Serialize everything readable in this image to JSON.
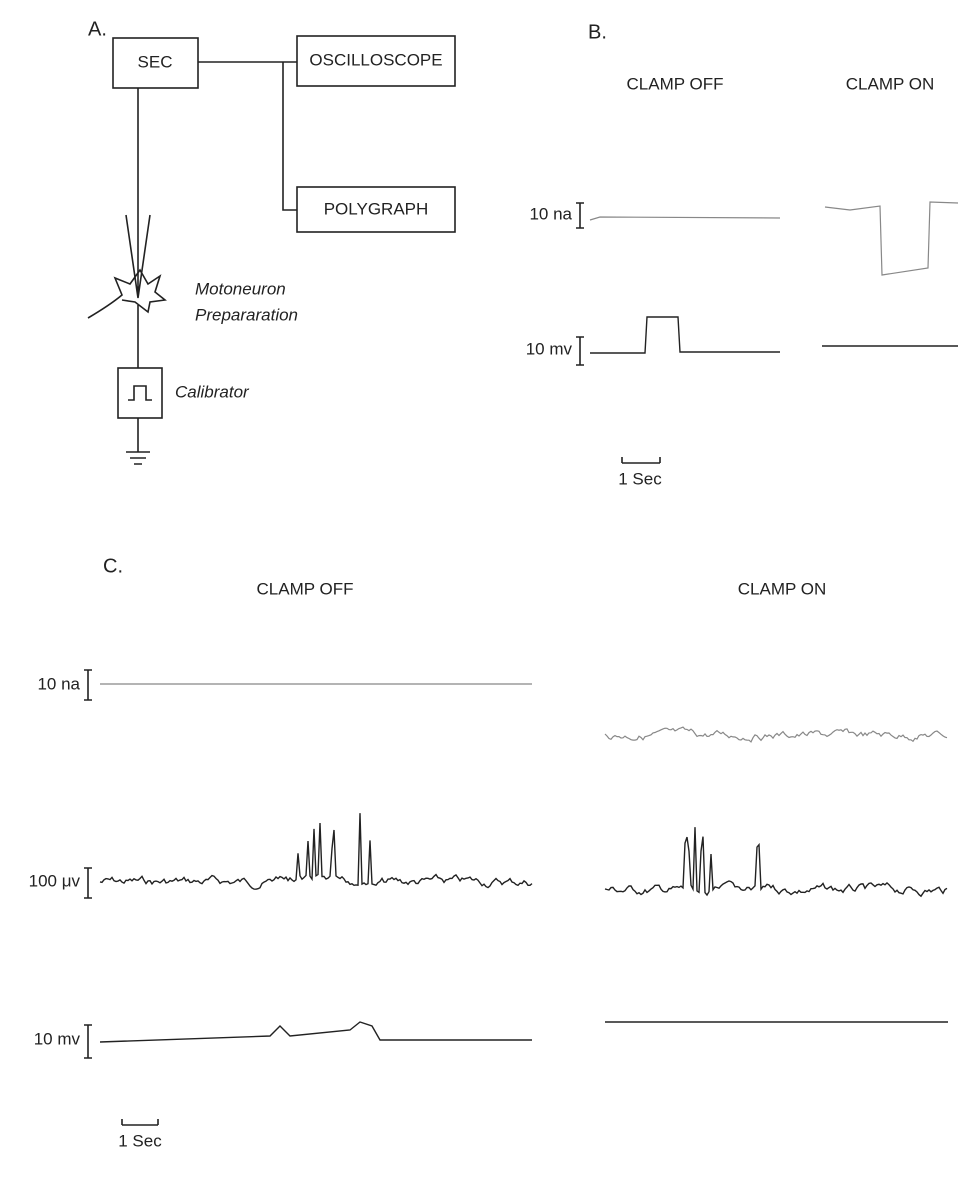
{
  "panel_a": {
    "label": "A.",
    "sec": "SEC",
    "oscilloscope": "OSCILLOSCOPE",
    "polygraph": "POLYGRAPH",
    "preparation": [
      "Motoneuron",
      "Prepararation"
    ],
    "calibrator": "Calibrator"
  },
  "panel_b": {
    "label": "B.",
    "columns": [
      "CLAMP OFF",
      "CLAMP ON"
    ],
    "scales": [
      "10 na",
      "10 mv"
    ],
    "time_scale": "1 Sec"
  },
  "panel_c": {
    "label": "C.",
    "columns": [
      "CLAMP OFF",
      "CLAMP ON"
    ],
    "scales": [
      "10 na",
      "100 μv",
      "10 mv"
    ],
    "time_scale": "1 Sec"
  }
}
